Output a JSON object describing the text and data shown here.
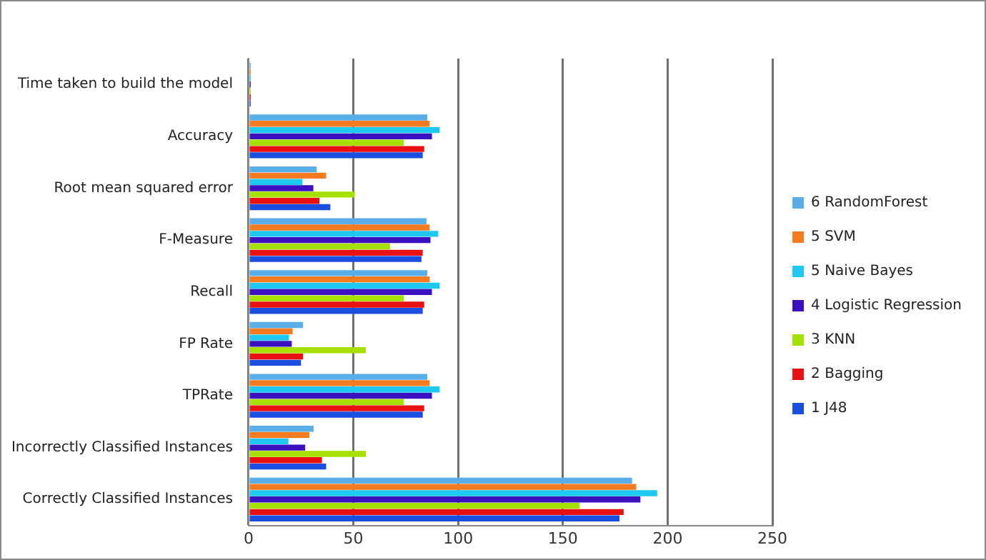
{
  "chart_data": {
    "type": "bar",
    "orientation": "horizontal",
    "categories": [
      "Time taken to build the model",
      "Accuracy",
      "Root mean squared error",
      "F-Measure",
      "Recall",
      "FP Rate",
      "TPRate",
      "Incorrectly Classified Instances",
      "Correctly Classified Instances"
    ],
    "series": [
      {
        "name": "6 RandomForest",
        "color": "#5aaee8",
        "values": [
          1,
          85.3,
          32.5,
          84.9,
          85.3,
          26,
          85.3,
          31,
          183
        ]
      },
      {
        "name": "5 SVM",
        "color": "#f47b20",
        "values": [
          1,
          86.4,
          37,
          86.4,
          86.4,
          21,
          86.4,
          29,
          185
        ]
      },
      {
        "name": "5 Naive Bayes",
        "color": "#1ec8f0",
        "values": [
          1,
          91.2,
          25.7,
          90.5,
          91.2,
          19.3,
          91.2,
          19,
          195
        ]
      },
      {
        "name": "4 Logistic Regression",
        "color": "#3a10c0",
        "values": [
          1,
          87.5,
          30.9,
          86.8,
          87.5,
          20.6,
          87.5,
          27,
          187
        ]
      },
      {
        "name": "3 KNN",
        "color": "#a6e000",
        "values": [
          1,
          74.1,
          50.7,
          67.5,
          74.1,
          55.9,
          74.1,
          56,
          158
        ]
      },
      {
        "name": "2 Bagging",
        "color": "#e81010",
        "values": [
          1,
          83.8,
          33.8,
          83.1,
          83.8,
          26,
          83.8,
          35,
          179
        ]
      },
      {
        "name": "1 J48",
        "color": "#1a4ee0",
        "values": [
          1,
          83.1,
          39,
          82.5,
          83.1,
          25,
          83.1,
          37,
          177
        ]
      }
    ],
    "xlim": [
      0,
      250
    ],
    "xticks": [
      0,
      50,
      100,
      150,
      200,
      250
    ],
    "grid": "x",
    "legend": "right"
  }
}
